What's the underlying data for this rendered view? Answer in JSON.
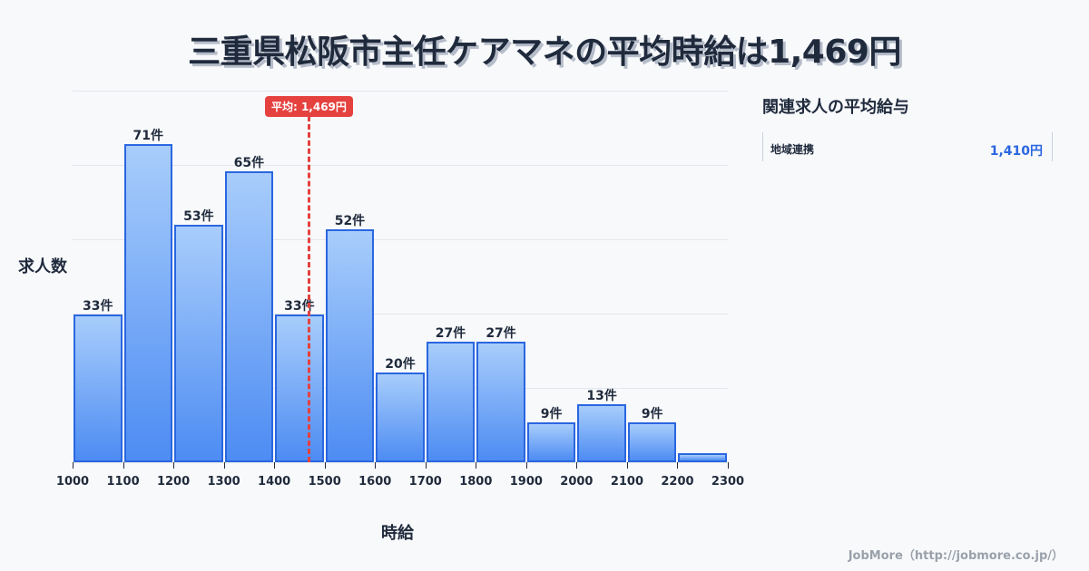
{
  "title": "三重県松阪市主任ケアマネの平均時給は1,469円",
  "chart_data": {
    "type": "bar",
    "title": "三重県松阪市主任ケアマネの平均時給は1,469円",
    "xlabel": "時給",
    "ylabel": "求人数",
    "bins": [
      1000,
      1100,
      1200,
      1300,
      1400,
      1500,
      1600,
      1700,
      1800,
      1900,
      2000,
      2100,
      2200,
      2300
    ],
    "categories": [
      "1000-1100",
      "1100-1200",
      "1200-1300",
      "1300-1400",
      "1400-1500",
      "1500-1600",
      "1600-1700",
      "1700-1800",
      "1800-1900",
      "1900-2000",
      "2000-2100",
      "2100-2200",
      "2200-2300"
    ],
    "values": [
      33,
      71,
      53,
      65,
      33,
      52,
      20,
      27,
      27,
      9,
      13,
      9,
      2
    ],
    "labels": [
      "33件",
      "71件",
      "53件",
      "65件",
      "33件",
      "52件",
      "20件",
      "27件",
      "27件",
      "9件",
      "13件",
      "9件",
      ""
    ],
    "xticks": [
      "1000",
      "1100",
      "1200",
      "1300",
      "1400",
      "1500",
      "1600",
      "1700",
      "1800",
      "1900",
      "2000",
      "2100",
      "2200",
      "2300"
    ],
    "xlim": [
      1000,
      2300
    ],
    "ylim": [
      0,
      83
    ],
    "grid": true,
    "average": {
      "value": 1469,
      "label": "平均: 1,469円",
      "color": "#e5413f"
    },
    "bar_color": "#4d8cf3",
    "bar_border_color": "#2a66e0"
  },
  "sidebar": {
    "title": "関連求人の平均給与",
    "items": [
      {
        "name": "地域連携",
        "value": "1,410円"
      }
    ]
  },
  "footer": "JobMore（http://jobmore.co.jp/）"
}
